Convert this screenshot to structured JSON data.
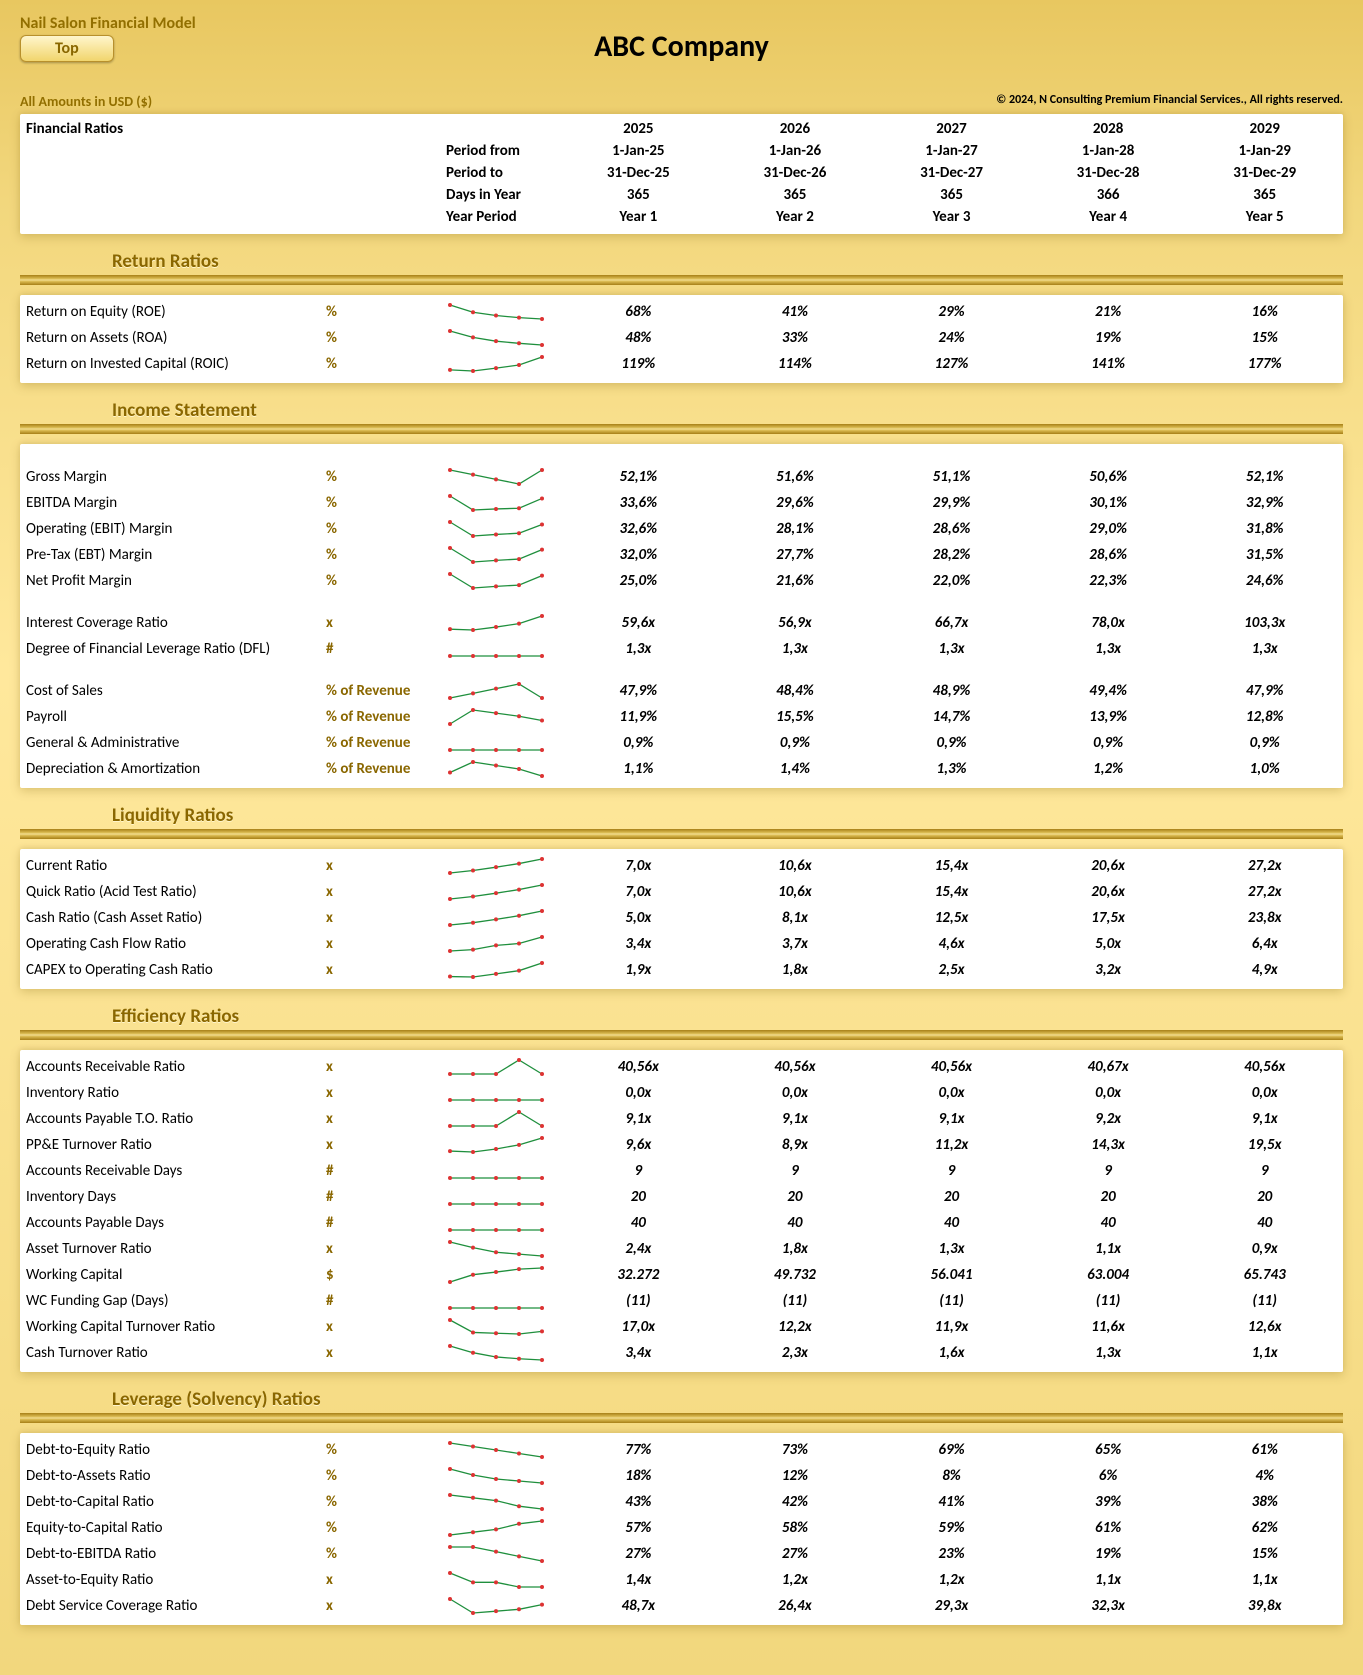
{
  "header": {
    "model_title": "Nail Salon Financial Model",
    "top_button": "Top",
    "company": "ABC Company",
    "amounts_in": "All Amounts in  USD ($)",
    "copyright": "© 2024, N Consulting Premium Financial Services., All rights reserved."
  },
  "section_title": "Financial Ratios",
  "meta_rows": [
    {
      "label": "Period from",
      "values": [
        "1-Jan-25",
        "1-Jan-26",
        "1-Jan-27",
        "1-Jan-28",
        "1-Jan-29"
      ]
    },
    {
      "label": "Period to",
      "values": [
        "31-Dec-25",
        "31-Dec-26",
        "31-Dec-27",
        "31-Dec-28",
        "31-Dec-29"
      ]
    },
    {
      "label": "Days in Year",
      "values": [
        "365",
        "365",
        "365",
        "366",
        "365"
      ]
    },
    {
      "label": "Year Period",
      "values": [
        "Year 1",
        "Year 2",
        "Year 3",
        "Year 4",
        "Year 5"
      ]
    }
  ],
  "years": [
    "2025",
    "2026",
    "2027",
    "2028",
    "2029"
  ],
  "spark_style": {
    "stroke": "#1f8f3d",
    "point": "#d33",
    "w": 100,
    "h": 22
  },
  "sections": [
    {
      "title": "Return Ratios",
      "rows": [
        {
          "label": "Return on Equity (ROE)",
          "unit": "%",
          "vals": [
            "68%",
            "41%",
            "29%",
            "21%",
            "16%"
          ],
          "spark": [
            68,
            41,
            29,
            21,
            16
          ]
        },
        {
          "label": "Return on Assets (ROA)",
          "unit": "%",
          "vals": [
            "48%",
            "33%",
            "24%",
            "19%",
            "15%"
          ],
          "spark": [
            48,
            33,
            24,
            19,
            15
          ]
        },
        {
          "label": "Return on Invested Capital (ROIC)",
          "unit": "%",
          "vals": [
            "119%",
            "114%",
            "127%",
            "141%",
            "177%"
          ],
          "spark": [
            119,
            114,
            127,
            141,
            177
          ]
        }
      ]
    },
    {
      "title": "Income Statement",
      "rows": [
        {
          "label": "Gross Margin",
          "unit": "%",
          "vals": [
            "52,1%",
            "51,6%",
            "51,1%",
            "50,6%",
            "52,1%"
          ],
          "spark": [
            52.1,
            51.6,
            51.1,
            50.6,
            52.1
          ],
          "gap_before": true
        },
        {
          "label": "EBITDA Margin",
          "unit": "%",
          "vals": [
            "33,6%",
            "29,6%",
            "29,9%",
            "30,1%",
            "32,9%"
          ],
          "spark": [
            33.6,
            29.6,
            29.9,
            30.1,
            32.9
          ]
        },
        {
          "label": "Operating (EBIT) Margin",
          "unit": "%",
          "vals": [
            "32,6%",
            "28,1%",
            "28,6%",
            "29,0%",
            "31,8%"
          ],
          "spark": [
            32.6,
            28.1,
            28.6,
            29.0,
            31.8
          ]
        },
        {
          "label": "Pre-Tax (EBT) Margin",
          "unit": "%",
          "vals": [
            "32,0%",
            "27,7%",
            "28,2%",
            "28,6%",
            "31,5%"
          ],
          "spark": [
            32.0,
            27.7,
            28.2,
            28.6,
            31.5
          ]
        },
        {
          "label": "Net Profit Margin",
          "unit": "%",
          "vals": [
            "25,0%",
            "21,6%",
            "22,0%",
            "22,3%",
            "24,6%"
          ],
          "spark": [
            25.0,
            21.6,
            22.0,
            22.3,
            24.6
          ],
          "gap_after": true
        },
        {
          "label": "Interest Coverage Ratio",
          "unit": "x",
          "vals": [
            "59,6x",
            "56,9x",
            "66,7x",
            "78,0x",
            "103,3x"
          ],
          "spark": [
            59.6,
            56.9,
            66.7,
            78.0,
            103.3
          ]
        },
        {
          "label": "Degree of Financial Leverage Ratio (DFL)",
          "unit": "#",
          "vals": [
            "1,3x",
            "1,3x",
            "1,3x",
            "1,3x",
            "1,3x"
          ],
          "spark": [
            1.3,
            1.3,
            1.3,
            1.3,
            1.3
          ],
          "gap_after": true
        },
        {
          "label": "Cost of Sales",
          "unit": "% of Revenue",
          "vals": [
            "47,9%",
            "48,4%",
            "48,9%",
            "49,4%",
            "47,9%"
          ],
          "spark": [
            47.9,
            48.4,
            48.9,
            49.4,
            47.9
          ]
        },
        {
          "label": "Payroll",
          "unit": "% of Revenue",
          "vals": [
            "11,9%",
            "15,5%",
            "14,7%",
            "13,9%",
            "12,8%"
          ],
          "spark": [
            11.9,
            15.5,
            14.7,
            13.9,
            12.8
          ]
        },
        {
          "label": "General & Administrative",
          "unit": "% of Revenue",
          "vals": [
            "0,9%",
            "0,9%",
            "0,9%",
            "0,9%",
            "0,9%"
          ],
          "spark": [
            0.9,
            0.9,
            0.9,
            0.9,
            0.9
          ]
        },
        {
          "label": "Depreciation & Amortization",
          "unit": "% of Revenue",
          "vals": [
            "1,1%",
            "1,4%",
            "1,3%",
            "1,2%",
            "1,0%"
          ],
          "spark": [
            1.1,
            1.4,
            1.3,
            1.2,
            1.0
          ]
        }
      ]
    },
    {
      "title": "Liquidity Ratios",
      "indent": true,
      "rows": [
        {
          "label": "Current Ratio",
          "unit": "x",
          "vals": [
            "7,0x",
            "10,6x",
            "15,4x",
            "20,6x",
            "27,2x"
          ],
          "spark": [
            7,
            10.6,
            15.4,
            20.6,
            27.2
          ]
        },
        {
          "label": "Quick Ratio (Acid Test Ratio)",
          "unit": "x",
          "vals": [
            "7,0x",
            "10,6x",
            "15,4x",
            "20,6x",
            "27,2x"
          ],
          "spark": [
            7,
            10.6,
            15.4,
            20.6,
            27.2
          ]
        },
        {
          "label": "Cash Ratio (Cash Asset Ratio)",
          "unit": "x",
          "vals": [
            "5,0x",
            "8,1x",
            "12,5x",
            "17,5x",
            "23,8x"
          ],
          "spark": [
            5,
            8.1,
            12.5,
            17.5,
            23.8
          ]
        },
        {
          "label": "Operating Cash Flow Ratio",
          "unit": "x",
          "vals": [
            "3,4x",
            "3,7x",
            "4,6x",
            "5,0x",
            "6,4x"
          ],
          "spark": [
            3.4,
            3.7,
            4.6,
            5.0,
            6.4
          ]
        },
        {
          "label": "CAPEX to Operating Cash Ratio",
          "unit": "x",
          "vals": [
            "1,9x",
            "1,8x",
            "2,5x",
            "3,2x",
            "4,9x"
          ],
          "spark": [
            1.9,
            1.8,
            2.5,
            3.2,
            4.9
          ]
        }
      ]
    },
    {
      "title": "Efficiency Ratios",
      "indent": true,
      "rows": [
        {
          "label": "Accounts Receivable  Ratio",
          "unit": "x",
          "vals": [
            "40,56x",
            "40,56x",
            "40,56x",
            "40,67x",
            "40,56x"
          ],
          "spark": [
            40.56,
            40.56,
            40.56,
            40.67,
            40.56
          ]
        },
        {
          "label": "Inventory  Ratio",
          "unit": "x",
          "vals": [
            "0,0x",
            "0,0x",
            "0,0x",
            "0,0x",
            "0,0x"
          ],
          "spark": [
            0,
            0,
            0,
            0,
            0
          ]
        },
        {
          "label": "Accounts Payable T.O. Ratio",
          "unit": "x",
          "vals": [
            "9,1x",
            "9,1x",
            "9,1x",
            "9,2x",
            "9,1x"
          ],
          "spark": [
            9.1,
            9.1,
            9.1,
            9.2,
            9.1
          ]
        },
        {
          "label": "PP&E Turnover Ratio",
          "unit": "x",
          "vals": [
            "9,6x",
            "8,9x",
            "11,2x",
            "14,3x",
            "19,5x"
          ],
          "spark": [
            9.6,
            8.9,
            11.2,
            14.3,
            19.5
          ]
        },
        {
          "label": "Accounts Receivable Days",
          "unit": "#",
          "vals": [
            "9",
            "9",
            "9",
            "9",
            "9"
          ],
          "spark": [
            9,
            9,
            9,
            9,
            9
          ]
        },
        {
          "label": "Inventory Days",
          "unit": "#",
          "vals": [
            "20",
            "20",
            "20",
            "20",
            "20"
          ],
          "spark": [
            20,
            20,
            20,
            20,
            20
          ]
        },
        {
          "label": "Accounts Payable Days",
          "unit": "#",
          "vals": [
            "40",
            "40",
            "40",
            "40",
            "40"
          ],
          "spark": [
            40,
            40,
            40,
            40,
            40
          ]
        },
        {
          "label": "Asset Turnover Ratio",
          "unit": "x",
          "vals": [
            "2,4x",
            "1,8x",
            "1,3x",
            "1,1x",
            "0,9x"
          ],
          "spark": [
            2.4,
            1.8,
            1.3,
            1.1,
            0.9
          ]
        },
        {
          "label": "Working Capital",
          "unit": "$",
          "vals": [
            "32.272",
            "49.732",
            "56.041",
            "63.004",
            "65.743"
          ],
          "spark": [
            32272,
            49732,
            56041,
            63004,
            65743
          ]
        },
        {
          "label": "WC Funding Gap (Days)",
          "unit": "#",
          "vals": [
            "(11)",
            "(11)",
            "(11)",
            "(11)",
            "(11)"
          ],
          "spark": [
            -11,
            -11,
            -11,
            -11,
            -11
          ]
        },
        {
          "label": "Working Capital Turnover Ratio",
          "unit": "x",
          "vals": [
            "17,0x",
            "12,2x",
            "11,9x",
            "11,6x",
            "12,6x"
          ],
          "spark": [
            17,
            12.2,
            11.9,
            11.6,
            12.6
          ]
        },
        {
          "label": "Cash Turnover Ratio",
          "unit": "x",
          "vals": [
            "3,4x",
            "2,3x",
            "1,6x",
            "1,3x",
            "1,1x"
          ],
          "spark": [
            3.4,
            2.3,
            1.6,
            1.3,
            1.1
          ]
        }
      ]
    },
    {
      "title": "Leverage (Solvency) Ratios",
      "indent": true,
      "rows": [
        {
          "label": "Debt-to-Equity Ratio",
          "unit": "%",
          "vals": [
            "77%",
            "73%",
            "69%",
            "65%",
            "61%"
          ],
          "spark": [
            77,
            73,
            69,
            65,
            61
          ]
        },
        {
          "label": "Debt-to-Assets Ratio",
          "unit": "%",
          "vals": [
            "18%",
            "12%",
            "8%",
            "6%",
            "4%"
          ],
          "spark": [
            18,
            12,
            8,
            6,
            4
          ]
        },
        {
          "label": "Debt-to-Capital Ratio",
          "unit": "%",
          "vals": [
            "43%",
            "42%",
            "41%",
            "39%",
            "38%"
          ],
          "spark": [
            43,
            42,
            41,
            39,
            38
          ]
        },
        {
          "label": "Equity-to-Capital Ratio",
          "unit": "%",
          "vals": [
            "57%",
            "58%",
            "59%",
            "61%",
            "62%"
          ],
          "spark": [
            57,
            58,
            59,
            61,
            62
          ]
        },
        {
          "label": "Debt-to-EBITDA Ratio",
          "unit": "%",
          "vals": [
            "27%",
            "27%",
            "23%",
            "19%",
            "15%"
          ],
          "spark": [
            27,
            27,
            23,
            19,
            15
          ]
        },
        {
          "label": "Asset-to-Equity Ratio",
          "unit": "x",
          "vals": [
            "1,4x",
            "1,2x",
            "1,2x",
            "1,1x",
            "1,1x"
          ],
          "spark": [
            1.4,
            1.2,
            1.2,
            1.1,
            1.1
          ]
        },
        {
          "label": "Debt Service Coverage Ratio",
          "unit": "x",
          "vals": [
            "48,7x",
            "26,4x",
            "29,3x",
            "32,3x",
            "39,8x"
          ],
          "spark": [
            48.7,
            26.4,
            29.3,
            32.3,
            39.8
          ]
        }
      ]
    }
  ]
}
